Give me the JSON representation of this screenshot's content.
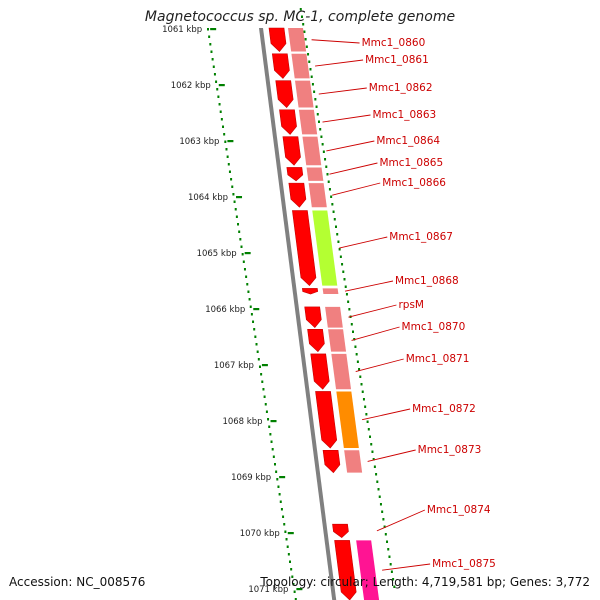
{
  "title": "Magnetococcus sp. MC-1, complete genome",
  "footer": {
    "accession": "Accession: NC_008576",
    "summary": "Topology: circular; Length: 4,719,581 bp; Genes: 3,772"
  },
  "ruler": {
    "ticks": [
      "1061 kbp",
      "1062 kbp",
      "1063 kbp",
      "1064 kbp",
      "1065 kbp",
      "1066 kbp",
      "1067 kbp",
      "1068 kbp",
      "1069 kbp",
      "1070 kbp",
      "1071 kbp"
    ]
  },
  "colors": {
    "cds": "#ff0000",
    "cds_dark": "#c80000",
    "feature_light": "#f08080",
    "feature_green": "#b4ff32",
    "feature_orange": "#ff8c00",
    "feature_magenta": "#ff1493",
    "backbone": "#808080",
    "ruler": "#008000",
    "label": "#cc0000"
  },
  "genes": [
    {
      "label": "Mmc1_0860",
      "start": 1061.0,
      "end": 1061.42,
      "feature": "light"
    },
    {
      "label": "Mmc1_0861",
      "start": 1061.46,
      "end": 1061.9,
      "feature": "light"
    },
    {
      "label": "Mmc1_0862",
      "start": 1061.94,
      "end": 1062.42,
      "feature": "light"
    },
    {
      "label": "Mmc1_0863",
      "start": 1062.46,
      "end": 1062.9,
      "feature": "light"
    },
    {
      "label": "Mmc1_0864",
      "start": 1062.94,
      "end": 1063.45,
      "feature": "light"
    },
    {
      "label": "Mmc1_0865",
      "start": 1063.49,
      "end": 1063.73,
      "feature": "light"
    },
    {
      "label": "Mmc1_0866",
      "start": 1063.77,
      "end": 1064.2,
      "feature": "light"
    },
    {
      "label": "Mmc1_0867",
      "start": 1064.26,
      "end": 1065.6,
      "feature": "green"
    },
    {
      "label": "Mmc1_0868",
      "start": 1065.65,
      "end": 1065.75,
      "feature": "light"
    },
    {
      "label": "rpsM",
      "start": 1065.98,
      "end": 1066.35,
      "feature": "light"
    },
    {
      "label": "Mmc1_0870",
      "start": 1066.38,
      "end": 1066.78,
      "feature": "light"
    },
    {
      "label": "Mmc1_0871",
      "start": 1066.82,
      "end": 1067.45,
      "feature": "light"
    },
    {
      "label": "Mmc1_0872",
      "start": 1067.49,
      "end": 1068.5,
      "feature": "orange"
    },
    {
      "label": "Mmc1_0873",
      "start": 1068.54,
      "end": 1068.94,
      "feature": "light"
    },
    {
      "label": "Mmc1_0874",
      "start": 1069.86,
      "end": 1070.1,
      "feature": "none"
    },
    {
      "label": "Mmc1_0875",
      "start": 1070.15,
      "end": 1071.3,
      "feature": "magenta"
    }
  ]
}
